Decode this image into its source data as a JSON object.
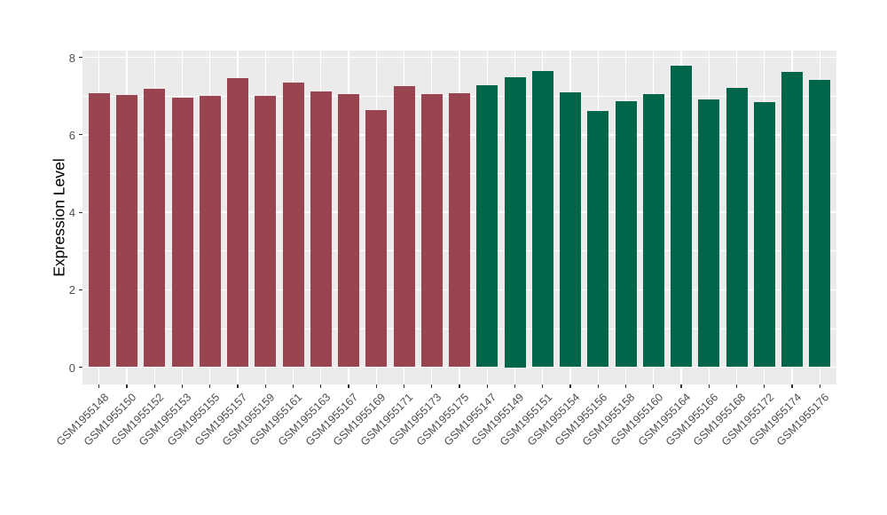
{
  "chart_data": {
    "type": "bar",
    "title": "",
    "xlabel": "",
    "ylabel": "Expression Level",
    "ylim": [
      0,
      8.18
    ],
    "yticks": [
      0,
      2,
      4,
      6,
      8
    ],
    "yticks_minor": [
      1,
      3,
      5,
      7
    ],
    "grid": true,
    "legend_position": "none",
    "panel_background": "#EBEBEB",
    "gridline_color": "#FFFFFF",
    "groups": [
      {
        "name": "group-1",
        "color": "#9A4452"
      },
      {
        "name": "group-2",
        "color": "#00664A"
      }
    ],
    "bars": [
      {
        "label": "GSM1955148",
        "value": 7.07,
        "group": 0
      },
      {
        "label": "GSM1955150",
        "value": 7.03,
        "group": 0
      },
      {
        "label": "GSM1955152",
        "value": 7.19,
        "group": 0
      },
      {
        "label": "GSM1955153",
        "value": 6.97,
        "group": 0
      },
      {
        "label": "GSM1955155",
        "value": 7.01,
        "group": 0
      },
      {
        "label": "GSM1955157",
        "value": 7.46,
        "group": 0
      },
      {
        "label": "GSM1955159",
        "value": 7.01,
        "group": 0
      },
      {
        "label": "GSM1955161",
        "value": 7.36,
        "group": 0
      },
      {
        "label": "GSM1955163",
        "value": 7.12,
        "group": 0
      },
      {
        "label": "GSM1955167",
        "value": 7.06,
        "group": 0
      },
      {
        "label": "GSM1955169",
        "value": 6.63,
        "group": 0
      },
      {
        "label": "GSM1955171",
        "value": 7.25,
        "group": 0
      },
      {
        "label": "GSM1955173",
        "value": 7.06,
        "group": 0
      },
      {
        "label": "GSM1955175",
        "value": 7.08,
        "group": 0
      },
      {
        "label": "GSM1955147",
        "value": 7.29,
        "group": 1
      },
      {
        "label": "GSM1955149",
        "value": 7.5,
        "group": 1
      },
      {
        "label": "GSM1955151",
        "value": 7.65,
        "group": 1
      },
      {
        "label": "GSM1955154",
        "value": 7.11,
        "group": 1
      },
      {
        "label": "GSM1955156",
        "value": 6.62,
        "group": 1
      },
      {
        "label": "GSM1955158",
        "value": 6.88,
        "group": 1
      },
      {
        "label": "GSM1955160",
        "value": 7.05,
        "group": 1
      },
      {
        "label": "GSM1955164",
        "value": 7.79,
        "group": 1
      },
      {
        "label": "GSM1955166",
        "value": 6.92,
        "group": 1
      },
      {
        "label": "GSM1955168",
        "value": 7.21,
        "group": 1
      },
      {
        "label": "GSM1955172",
        "value": 6.85,
        "group": 1
      },
      {
        "label": "GSM1955174",
        "value": 7.62,
        "group": 1
      },
      {
        "label": "GSM1955176",
        "value": 7.42,
        "group": 1
      }
    ]
  }
}
